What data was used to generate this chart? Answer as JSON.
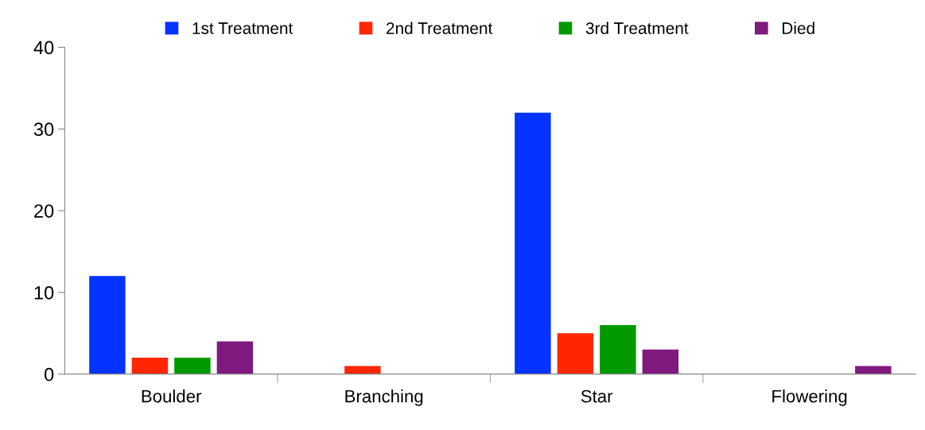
{
  "chart_data": {
    "type": "bar",
    "categories": [
      "Boulder",
      "Branching",
      "Star",
      "Flowering"
    ],
    "series": [
      {
        "name": "1st Treatment",
        "color": "#0433ff",
        "values": [
          12,
          0,
          32,
          0
        ]
      },
      {
        "name": "2nd Treatment",
        "color": "#ff2600",
        "values": [
          2,
          1,
          5,
          0
        ]
      },
      {
        "name": "3rd Treatment",
        "color": "#009900",
        "values": [
          2,
          0,
          6,
          0
        ]
      },
      {
        "name": "Died",
        "color": "#7f1a7f",
        "values": [
          4,
          0,
          3,
          1
        ]
      }
    ],
    "ylim": [
      0,
      40
    ],
    "yticks": [
      0,
      10,
      20,
      30,
      40
    ],
    "grid": false,
    "legend": "top"
  }
}
